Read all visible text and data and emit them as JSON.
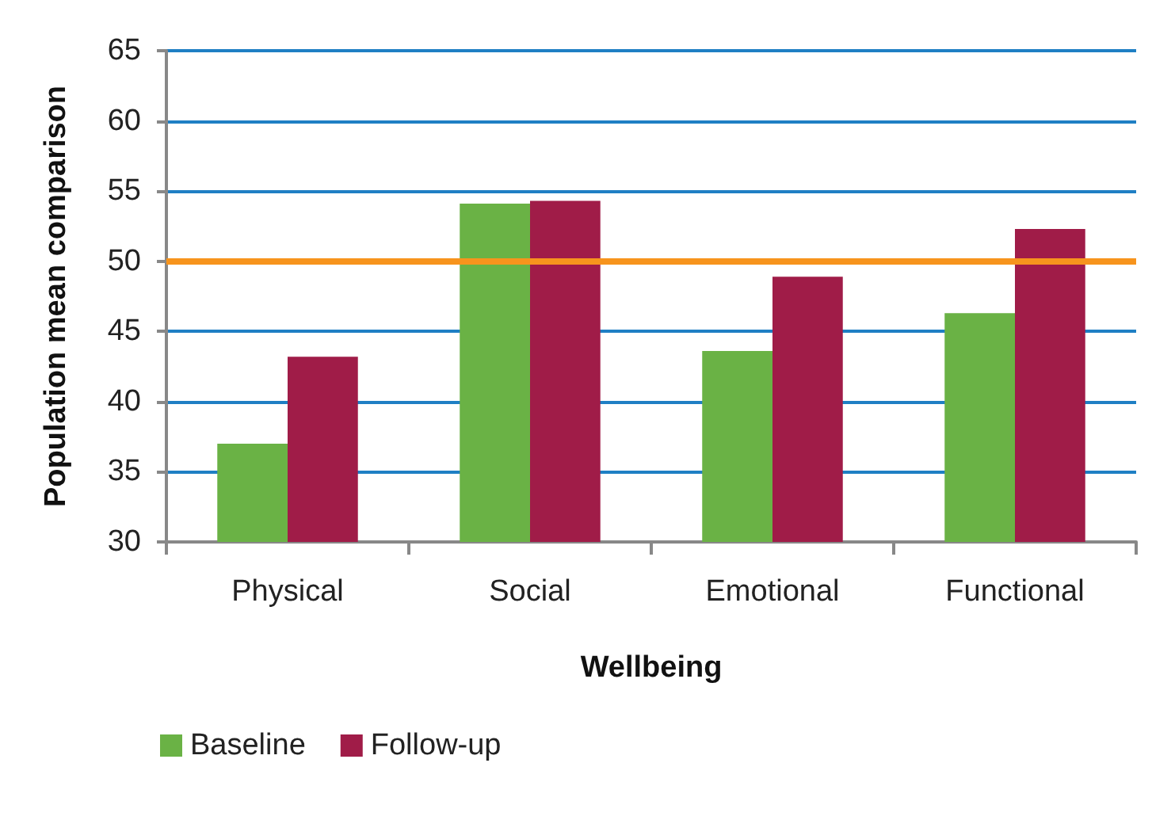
{
  "chart_data": {
    "type": "bar",
    "xlabel": "Wellbeing",
    "ylabel": "Population mean comparison",
    "categories": [
      "Physical",
      "Social",
      "Emotional",
      "Functional"
    ],
    "series": [
      {
        "name": "Baseline",
        "color": "#6ab245",
        "values": [
          37.0,
          54.1,
          43.6,
          46.3
        ]
      },
      {
        "name": "Follow-up",
        "color": "#a01c48",
        "values": [
          43.2,
          54.3,
          48.9,
          52.3
        ]
      }
    ],
    "ylim": [
      30,
      65
    ],
    "yticks": [
      30,
      35,
      40,
      45,
      50,
      55,
      60,
      65
    ],
    "grid": "y",
    "legend": "bottom left",
    "ref_lines": [
      {
        "axis": "y",
        "value": 50,
        "color": "#f7941d"
      }
    ]
  }
}
